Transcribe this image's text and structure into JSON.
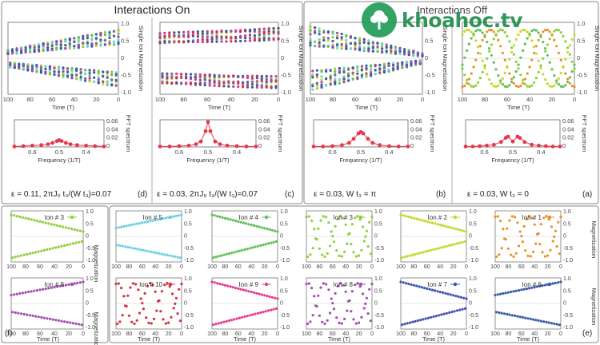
{
  "header": {
    "interactions_on": "Interactions On",
    "interactions_off": "Interactions Off"
  },
  "watermark": {
    "logo_text": "khoahoc.tv",
    "color": "#1c8a4a"
  },
  "labels": {
    "magnetization": "Magnetization",
    "single_ion_magnetization": "Single Ion Magnetization",
    "fft_spectrum": "FFT spectrum",
    "time_axis": "Time (T)",
    "frequency_axis": "Frequency (1/T)"
  },
  "panels": {
    "a": {
      "letter": "(a)",
      "caption": "ε = 0.03,  W t₃ = 0"
    },
    "b": {
      "letter": "(b)",
      "caption": "ε = 0.03,  W t₃ = π"
    },
    "c": {
      "letter": "(c)",
      "caption": "ε = 0.03, 2πJ₀ t₃/(W t₃)=0.07"
    },
    "d": {
      "letter": "(d)",
      "caption": "ε = 0.11, 2πJ₀ t₃/(W t₃)=0.07"
    },
    "e": {
      "letter": "(e)"
    },
    "f": {
      "letter": "(f)"
    }
  },
  "colors": {
    "ions": [
      "#e8912b",
      "#c8d62e",
      "#8ed03a",
      "#5ec05a",
      "#6fd0df",
      "#3a5ba8",
      "#3f55b0",
      "#a24fb0",
      "#e53b8f",
      "#d8313e",
      "#9b5bb2"
    ],
    "fft_main": "#e8374a",
    "axes": "#666666"
  },
  "chart_data": [
    {
      "type": "scatter",
      "panel": "a",
      "title": "",
      "xlabel": "Time (T)",
      "ylabel": "Single Ion Magnetization",
      "xlim": [
        0,
        100
      ],
      "ylim": [
        -1,
        1
      ],
      "oscillation_period": 50,
      "envelope": "constant",
      "series_count": 10
    },
    {
      "type": "scatter",
      "panel": "b",
      "title": "",
      "xlabel": "Time (T)",
      "ylabel": "Single Ion Magnetization",
      "xlim": [
        0,
        100
      ],
      "ylim": [
        -1,
        1
      ],
      "envelope": "diverging",
      "series_count": 10
    },
    {
      "type": "scatter",
      "panel": "c",
      "title": "",
      "xlabel": "Time (T)",
      "ylabel": "Single Ion Magnetization",
      "xlim": [
        0,
        100
      ],
      "ylim": [
        -1,
        1
      ],
      "envelope": "sustained",
      "series_count": 10
    },
    {
      "type": "scatter",
      "panel": "d",
      "title": "",
      "xlabel": "Time (T)",
      "ylabel": "Single Ion Magnetization",
      "xlim": [
        0,
        100
      ],
      "ylim": [
        -1,
        1
      ],
      "envelope": "decaying",
      "series_count": 10
    },
    {
      "type": "line",
      "panel": "a-fft",
      "xlabel": "Frequency (1/T)",
      "ylabel": "FFT spectrum",
      "xlim": [
        0.3,
        0.7
      ],
      "ylim": [
        0,
        0.06
      ],
      "x": [
        0.3,
        0.33,
        0.36,
        0.39,
        0.42,
        0.45,
        0.47,
        0.48,
        0.5,
        0.52,
        0.53,
        0.55,
        0.58,
        0.61,
        0.64,
        0.67,
        0.7
      ],
      "y": [
        0.001,
        0.001,
        0.002,
        0.003,
        0.005,
        0.011,
        0.02,
        0.023,
        0.012,
        0.023,
        0.02,
        0.011,
        0.005,
        0.003,
        0.002,
        0.001,
        0.001
      ]
    },
    {
      "type": "line",
      "panel": "b-fft",
      "xlabel": "Frequency (1/T)",
      "ylabel": "FFT spectrum",
      "xlim": [
        0.3,
        0.7
      ],
      "ylim": [
        0,
        0.06
      ],
      "x": [
        0.3,
        0.34,
        0.38,
        0.42,
        0.45,
        0.47,
        0.49,
        0.5,
        0.51,
        0.53,
        0.55,
        0.58,
        0.62,
        0.66,
        0.7
      ],
      "y": [
        0.001,
        0.001,
        0.002,
        0.004,
        0.009,
        0.018,
        0.03,
        0.033,
        0.03,
        0.018,
        0.009,
        0.004,
        0.002,
        0.001,
        0.001
      ]
    },
    {
      "type": "line",
      "panel": "c-fft",
      "xlabel": "Frequency (1/T)",
      "ylabel": "FFT spectrum",
      "xlim": [
        0.3,
        0.7
      ],
      "ylim": [
        0,
        0.06
      ],
      "x": [
        0.3,
        0.34,
        0.38,
        0.42,
        0.45,
        0.47,
        0.49,
        0.5,
        0.51,
        0.53,
        0.55,
        0.58,
        0.62,
        0.66,
        0.7
      ],
      "y": [
        0.001,
        0.001,
        0.002,
        0.003,
        0.006,
        0.012,
        0.035,
        0.055,
        0.035,
        0.012,
        0.006,
        0.003,
        0.002,
        0.001,
        0.001
      ]
    },
    {
      "type": "line",
      "panel": "d-fft",
      "xlabel": "Frequency (1/T)",
      "ylabel": "FFT spectrum",
      "xlim": [
        0.3,
        0.7
      ],
      "ylim": [
        0,
        0.06
      ],
      "x": [
        0.3,
        0.34,
        0.38,
        0.42,
        0.45,
        0.47,
        0.49,
        0.5,
        0.51,
        0.53,
        0.55,
        0.58,
        0.62,
        0.66,
        0.7
      ],
      "y": [
        0.001,
        0.002,
        0.003,
        0.004,
        0.006,
        0.009,
        0.013,
        0.015,
        0.013,
        0.009,
        0.006,
        0.004,
        0.003,
        0.002,
        0.001
      ]
    },
    {
      "type": "scatter",
      "panel": "e",
      "series": [
        {
          "name": "Ion # 1"
        },
        {
          "name": "Ion # 2"
        },
        {
          "name": "Ion # 3"
        },
        {
          "name": "Ion # 4"
        },
        {
          "name": "Ion # 5"
        },
        {
          "name": "Ion # 6"
        },
        {
          "name": "Ion # 7"
        },
        {
          "name": "Ion # 8"
        },
        {
          "name": "Ion # 9"
        },
        {
          "name": "Ion # 10"
        }
      ],
      "xlabel": "Time (T)",
      "ylabel": "Magnetization",
      "xlim": [
        0,
        100
      ],
      "ylim": [
        -1,
        1
      ]
    },
    {
      "type": "scatter",
      "panel": "f",
      "series": [
        {
          "name": "Ion # 3"
        },
        {
          "name": "Ion # 8"
        }
      ],
      "xlabel": "Time (T)",
      "ylabel": "Magnetization",
      "xlim": [
        0,
        100
      ],
      "ylim": [
        -1,
        1
      ]
    }
  ]
}
